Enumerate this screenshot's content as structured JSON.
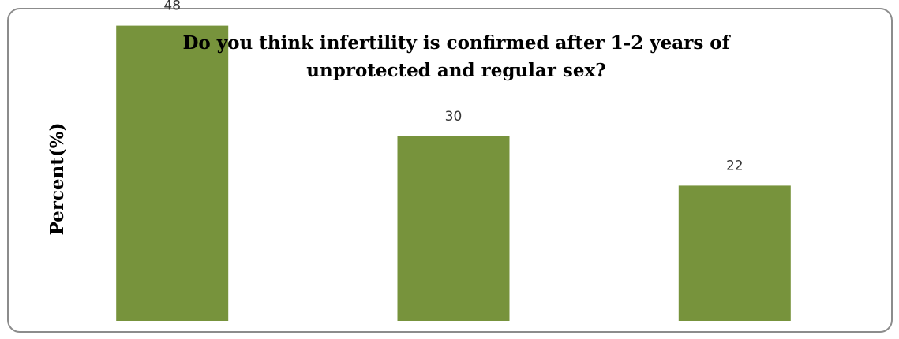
{
  "chart_data": {
    "type": "bar",
    "title_lines": [
      "Do you think infertility is confirmed after 1-2 years of",
      "unprotected and regular sex?"
    ],
    "ylabel": "Percent(%)",
    "categories": [
      "",
      "",
      ""
    ],
    "values": [
      48,
      30,
      22
    ],
    "ylim": [
      0,
      50
    ],
    "bar_color": "#77933c",
    "grid": false,
    "legend": "none"
  }
}
